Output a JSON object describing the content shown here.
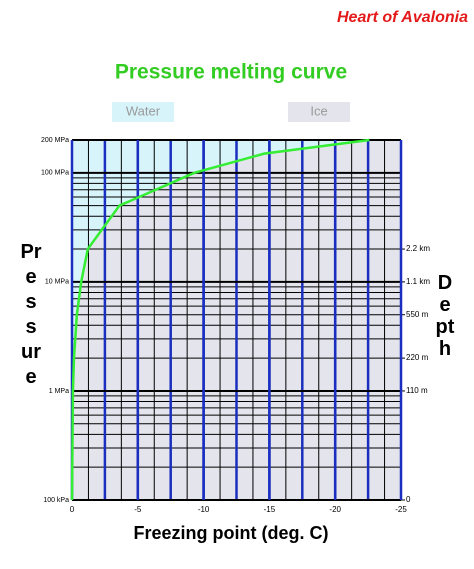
{
  "brand": "Heart of Avalonia",
  "chart_data": {
    "type": "line",
    "title": "Pressure melting curve",
    "x_label": "Freezing point (deg. C)",
    "y_label": "Pressure",
    "y2_label": "Depth",
    "regions": [
      {
        "name": "Water",
        "color": "#d8f4fb"
      },
      {
        "name": "Ice",
        "color": "#e4e4ec"
      }
    ],
    "series": [
      {
        "color": "#33ee33",
        "x": [
          0,
          -0.07,
          -0.15,
          -0.37,
          -0.7,
          -1.2,
          -3.6,
          -9.3,
          -14.6,
          -22.6
        ],
        "y": [
          0.1,
          1,
          2,
          5,
          10,
          20,
          50,
          100,
          150,
          200
        ]
      }
    ],
    "xlim": [
      0,
      -25
    ],
    "xticks": [
      0,
      -5,
      -10,
      -15,
      -20,
      -25
    ],
    "ylim": [
      0.1,
      200
    ],
    "log_y": true,
    "yticks": [
      {
        "value": 0.1,
        "label": "100 kPa"
      },
      {
        "value": 1,
        "label": "1 MPa"
      },
      {
        "value": 10,
        "label": "10 MPa"
      },
      {
        "value": 100,
        "label": "100 MPa"
      },
      {
        "value": 200,
        "label": "200 MPa"
      }
    ],
    "y2lim": [
      0.1,
      200
    ],
    "y2ticks": [
      {
        "value": 0.1,
        "label": "0"
      },
      {
        "value": 1,
        "label": "110 m"
      },
      {
        "value": 2,
        "label": "220 m"
      },
      {
        "value": 5,
        "label": "550 m"
      },
      {
        "value": 10,
        "label": "1.1 km"
      },
      {
        "value": 20,
        "label": "2.2 km"
      }
    ],
    "grid": true
  }
}
